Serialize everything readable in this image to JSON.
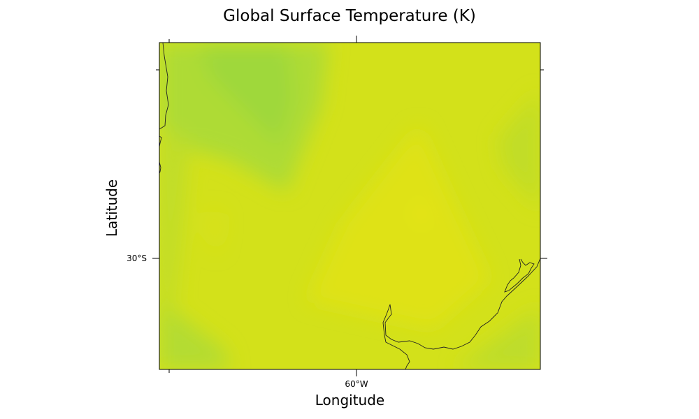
{
  "chart_data": {
    "type": "heatmap",
    "title": "Global Surface Temperature (K)",
    "xlabel": "Longitude",
    "ylabel": "Latitude",
    "x_ticks": [
      "60°W"
    ],
    "y_ticks": [
      "30°S"
    ],
    "colormap": [
      "#9ed93a",
      "#b7dc2c",
      "#cde01c",
      "#dfe218",
      "#e7e514"
    ],
    "grid": false,
    "legend": "none"
  }
}
